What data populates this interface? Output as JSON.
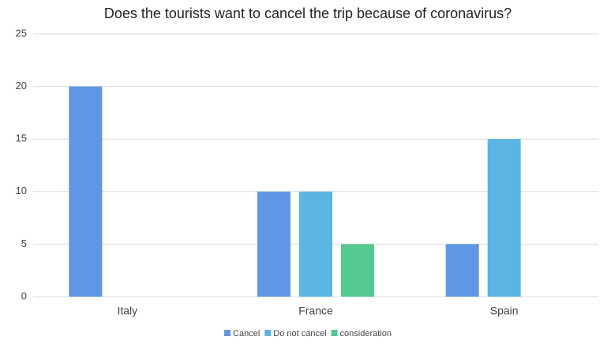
{
  "chart_data": {
    "type": "bar",
    "title": "Does the tourists want to cancel the trip because of coronavirus?",
    "categories": [
      "Italy",
      "France",
      "Spain"
    ],
    "series": [
      {
        "name": "Cancel",
        "color": "#6096e6",
        "values": [
          20,
          10,
          5
        ]
      },
      {
        "name": "Do not cancel",
        "color": "#5ab5e4",
        "values": [
          0,
          10,
          15
        ]
      },
      {
        "name": "consideration",
        "color": "#55c992",
        "values": [
          0,
          5,
          0
        ]
      }
    ],
    "ylim": [
      0,
      25
    ],
    "yticks": [
      0,
      5,
      10,
      15,
      20,
      25
    ],
    "grid": true,
    "legend": "bottom"
  }
}
